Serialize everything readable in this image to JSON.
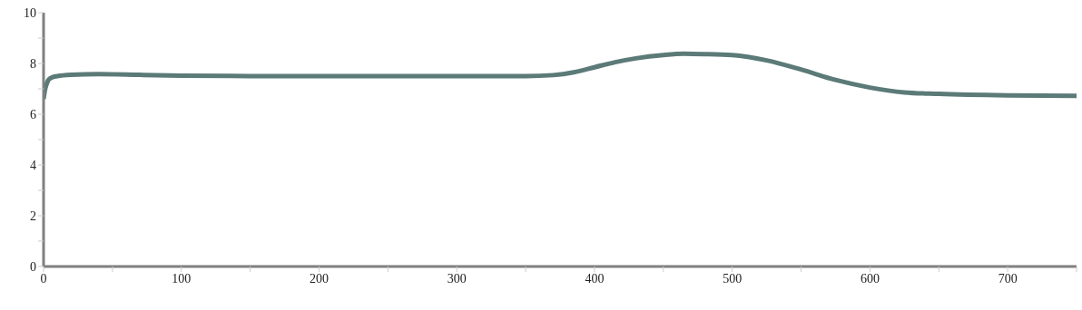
{
  "chart_data": {
    "type": "line",
    "x": [
      0,
      1,
      2,
      3,
      5,
      7,
      10,
      20,
      40,
      70,
      100,
      150,
      200,
      250,
      300,
      350,
      370,
      385,
      400,
      415,
      430,
      450,
      465,
      480,
      500,
      525,
      550,
      575,
      600,
      625,
      650,
      700,
      750
    ],
    "series": [
      {
        "color": "#5b7a78",
        "values": [
          6.6,
          6.95,
          7.15,
          7.3,
          7.42,
          7.47,
          7.5,
          7.55,
          7.58,
          7.55,
          7.52,
          7.5,
          7.5,
          7.5,
          7.5,
          7.5,
          7.54,
          7.65,
          7.85,
          8.05,
          8.2,
          8.33,
          8.38,
          8.37,
          8.33,
          8.12,
          7.76,
          7.35,
          7.05,
          6.86,
          6.8,
          6.74,
          6.72
        ]
      }
    ],
    "xlim": [
      0,
      750
    ],
    "xticks": [
      0,
      {
        "value": 50,
        "label": null
      },
      100,
      {
        "value": 150,
        "label": null
      },
      200,
      {
        "value": 250,
        "label": null
      },
      300,
      {
        "value": 350,
        "label": null
      },
      400,
      {
        "value": 450,
        "label": null
      },
      500,
      {
        "value": 550,
        "label": null
      },
      600,
      {
        "value": 650,
        "label": null
      },
      700,
      {
        "value": 750,
        "label": null
      }
    ],
    "ylim": [
      0,
      10
    ],
    "yticks": [
      0,
      {
        "value": 1,
        "label": null
      },
      2,
      {
        "value": 3,
        "label": null
      },
      4,
      {
        "value": 5,
        "label": null
      },
      6,
      {
        "value": 7,
        "label": null
      },
      8,
      {
        "value": 9,
        "label": null
      },
      10
    ],
    "grid": false,
    "legend": false,
    "marker": "none",
    "line_style": "solid"
  }
}
